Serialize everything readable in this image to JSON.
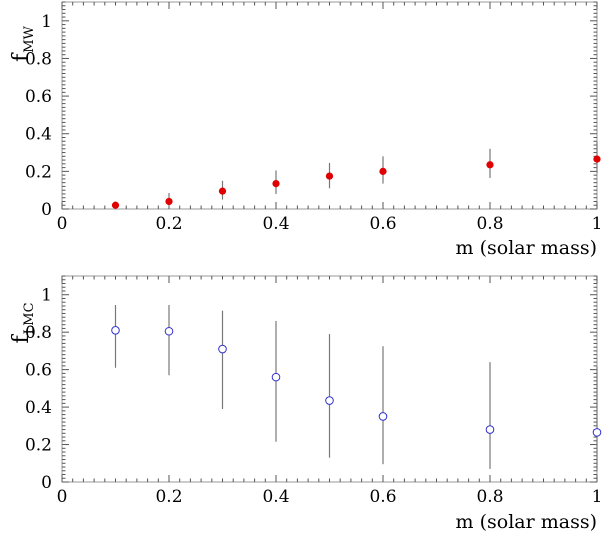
{
  "chart_data": [
    {
      "type": "scatter",
      "ylabel": "f",
      "ylabel_sub": "MW",
      "xlabel": "m (solar mass)",
      "xlim": [
        0,
        1
      ],
      "ylim": [
        0,
        1.1
      ],
      "xticks": [
        "0",
        "0.2",
        "0.4",
        "0.6",
        "0.8",
        "1"
      ],
      "yticks": [
        "0",
        "0.2",
        "0.4",
        "0.6",
        "0.8",
        "1"
      ],
      "marker": "filled-circle",
      "color": "#e00000",
      "errorbar_color": "#777777",
      "points": [
        {
          "x": 0.1,
          "y": 0.02,
          "lo": 0.0,
          "hi": 0.04
        },
        {
          "x": 0.2,
          "y": 0.04,
          "lo": 0.01,
          "hi": 0.085
        },
        {
          "x": 0.3,
          "y": 0.095,
          "lo": 0.05,
          "hi": 0.15
        },
        {
          "x": 0.4,
          "y": 0.135,
          "lo": 0.08,
          "hi": 0.205
        },
        {
          "x": 0.5,
          "y": 0.175,
          "lo": 0.11,
          "hi": 0.245
        },
        {
          "x": 0.6,
          "y": 0.2,
          "lo": 0.135,
          "hi": 0.28
        },
        {
          "x": 0.8,
          "y": 0.235,
          "lo": 0.165,
          "hi": 0.32
        },
        {
          "x": 1.0,
          "y": 0.265,
          "lo": 0.19,
          "hi": 0.355
        }
      ]
    },
    {
      "type": "scatter",
      "ylabel": "f",
      "ylabel_sub": "LMC",
      "xlabel": "m (solar mass)",
      "xlim": [
        0,
        1
      ],
      "ylim": [
        0,
        1.1
      ],
      "xticks": [
        "0",
        "0.2",
        "0.4",
        "0.6",
        "0.8",
        "1"
      ],
      "yticks": [
        "0",
        "0.2",
        "0.4",
        "0.6",
        "0.8",
        "1"
      ],
      "marker": "open-circle",
      "color": "#3030d0",
      "errorbar_color": "#777777",
      "points": [
        {
          "x": 0.1,
          "y": 0.81,
          "lo": 0.61,
          "hi": 0.945
        },
        {
          "x": 0.2,
          "y": 0.805,
          "lo": 0.57,
          "hi": 0.945
        },
        {
          "x": 0.3,
          "y": 0.71,
          "lo": 0.39,
          "hi": 0.915
        },
        {
          "x": 0.4,
          "y": 0.56,
          "lo": 0.215,
          "hi": 0.86
        },
        {
          "x": 0.5,
          "y": 0.435,
          "lo": 0.13,
          "hi": 0.79
        },
        {
          "x": 0.6,
          "y": 0.35,
          "lo": 0.095,
          "hi": 0.725
        },
        {
          "x": 0.8,
          "y": 0.28,
          "lo": 0.07,
          "hi": 0.64
        },
        {
          "x": 1.0,
          "y": 0.265,
          "lo": 0.06,
          "hi": 0.615
        }
      ]
    }
  ]
}
